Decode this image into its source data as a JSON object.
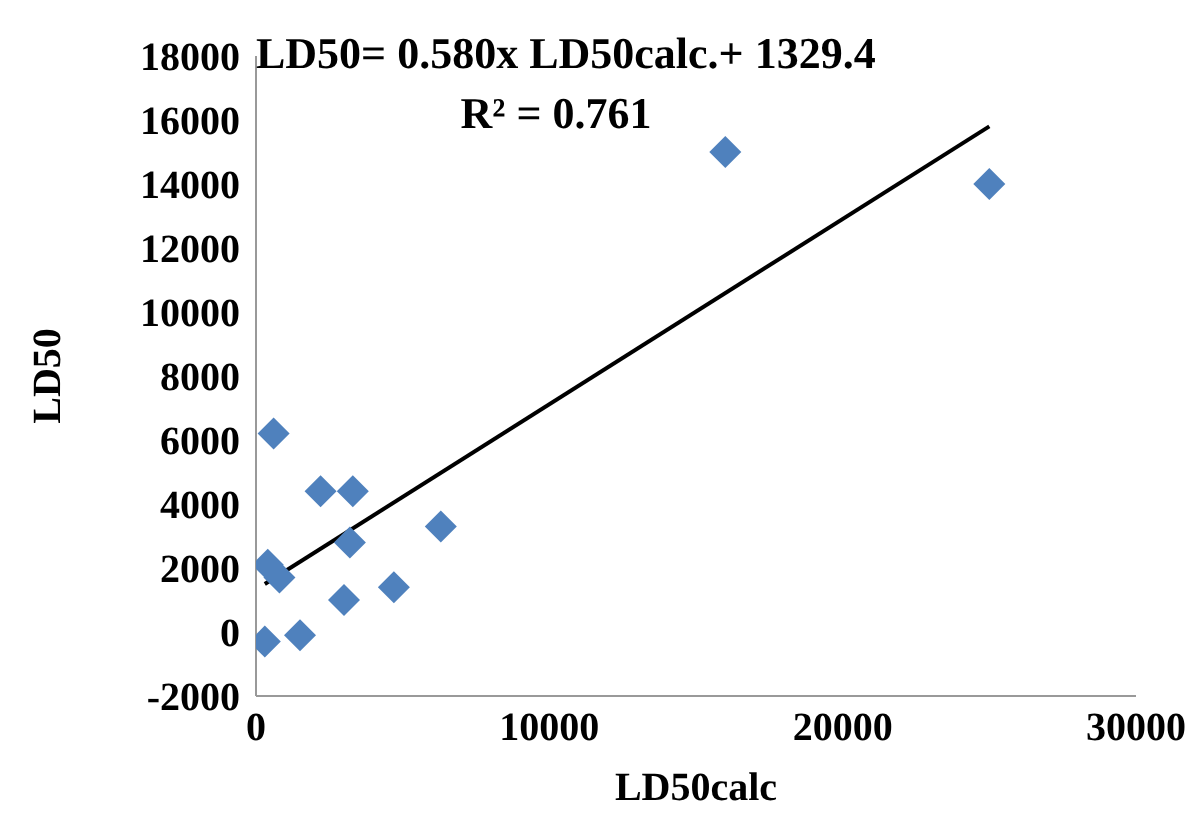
{
  "chart_data": {
    "type": "scatter",
    "title": "LD50= 0.580x LD50calc.+ 1329.4",
    "subtitle": "R² = 0.761",
    "xlabel": "LD50calc",
    "ylabel": "LD50",
    "xlim": [
      0,
      30000
    ],
    "xticks": [
      0,
      10000,
      20000,
      30000
    ],
    "ylim": [
      -2000,
      18000
    ],
    "yticks": [
      -2000,
      0,
      2000,
      4000,
      6000,
      8000,
      10000,
      12000,
      14000,
      16000,
      18000
    ],
    "grid": false,
    "legend": false,
    "marker": "diamond",
    "series": [
      {
        "color": "#4f81bd",
        "x": [
          600,
          2200,
          3300,
          6300,
          3200,
          400,
          800,
          4700,
          3000,
          1500,
          300,
          16000,
          25000
        ],
        "values": [
          6200,
          4400,
          4400,
          3300,
          2800,
          2100,
          1700,
          1400,
          1000,
          -100,
          -300,
          15000,
          14000
        ]
      },
      {
        "type": "line",
        "color": "#000000",
        "marker": "none",
        "x": [
          300,
          25000
        ],
        "values": [
          1500,
          15800
        ]
      }
    ]
  }
}
